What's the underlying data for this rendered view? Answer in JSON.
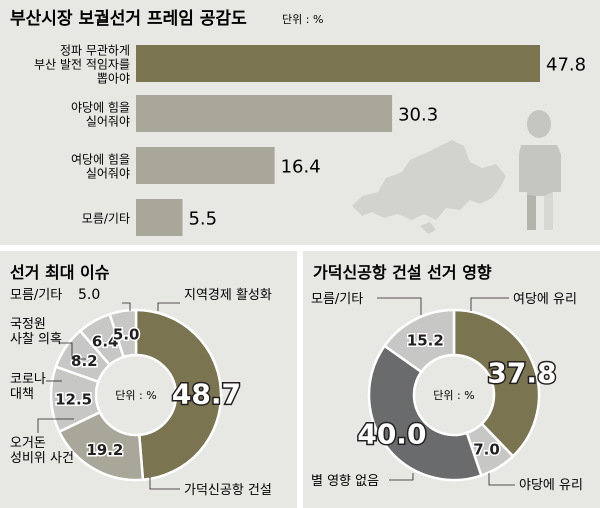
{
  "charts": {
    "bar": {
      "title": "부산시장 보궐선거 프레임 공감도",
      "unit": "단위 : %"
    },
    "donut_left": {
      "title": "선거 최대 이슈",
      "center": "단위 : %"
    },
    "donut_right": {
      "title": "가덕신공항 건설 선거 영향",
      "center": "단위 : %"
    }
  },
  "colors": {
    "olive": "#7b7451",
    "gray": "#a9a79a",
    "light_gray": "#c7c8c6",
    "dark_gray": "#6a6b6d",
    "panel_bg": "#e7e8e3",
    "silhouette": "#d1d3cc"
  },
  "chart_data": [
    {
      "type": "bar",
      "title": "부산시장 보궐선거 프레임 공감도",
      "unit": "단위 : %",
      "orientation": "horizontal",
      "categories": [
        [
          "정파 무관하게",
          "부산 발전 적임자를",
          "뽑아야"
        ],
        [
          "야당에 힘을",
          "실어줘야"
        ],
        [
          "여당에 힘을",
          "실어줘야"
        ],
        [
          "모름/기타"
        ]
      ],
      "values": [
        47.8,
        30.3,
        16.4,
        5.5
      ],
      "value_labels": [
        "47.8",
        "30.3",
        "16.4",
        "5.5"
      ],
      "colors": [
        "#7b7451",
        "#a9a79a",
        "#a9a79a",
        "#a9a79a"
      ],
      "xlim": [
        0,
        50
      ]
    },
    {
      "type": "pie",
      "variant": "donut",
      "title": "선거 최대 이슈",
      "unit": "단위 : %",
      "slices": [
        {
          "label": "지역경제 활성화",
          "value": 48.7,
          "value_label": "48.7",
          "color": "#7b7451"
        },
        {
          "label": "가덕신공항 건설",
          "value": 19.2,
          "value_label": "19.2",
          "color": "#a9a79a"
        },
        {
          "label": "오거돈 성비위 사건",
          "value": 12.5,
          "value_label": "12.5",
          "color": "#c7c8c6"
        },
        {
          "label": "코로나 대책",
          "value": 8.2,
          "value_label": "8.2",
          "color": "#c7c8c6"
        },
        {
          "label": "국정원 사찰 의혹",
          "value": 6.4,
          "value_label": "6.4",
          "color": "#c7c8c6"
        },
        {
          "label": "모름/기타",
          "value": 5.0,
          "value_label": "5.0",
          "color": "#c7c8c6"
        }
      ]
    },
    {
      "type": "pie",
      "variant": "donut",
      "title": "가덕신공항 건설 선거 영향",
      "unit": "단위 : %",
      "slices": [
        {
          "label": "여당에 유리",
          "value": 37.8,
          "value_label": "37.8",
          "color": "#7b7451"
        },
        {
          "label": "야당에 유리",
          "value": 7.0,
          "value_label": "7.0",
          "color": "#c7c8c6"
        },
        {
          "label": "별 영향 없음",
          "value": 40.0,
          "value_label": "40.0",
          "color": "#6a6b6d"
        },
        {
          "label": "모름/기타",
          "value": 15.2,
          "value_label": "15.2",
          "color": "#c7c8c6"
        }
      ]
    }
  ]
}
